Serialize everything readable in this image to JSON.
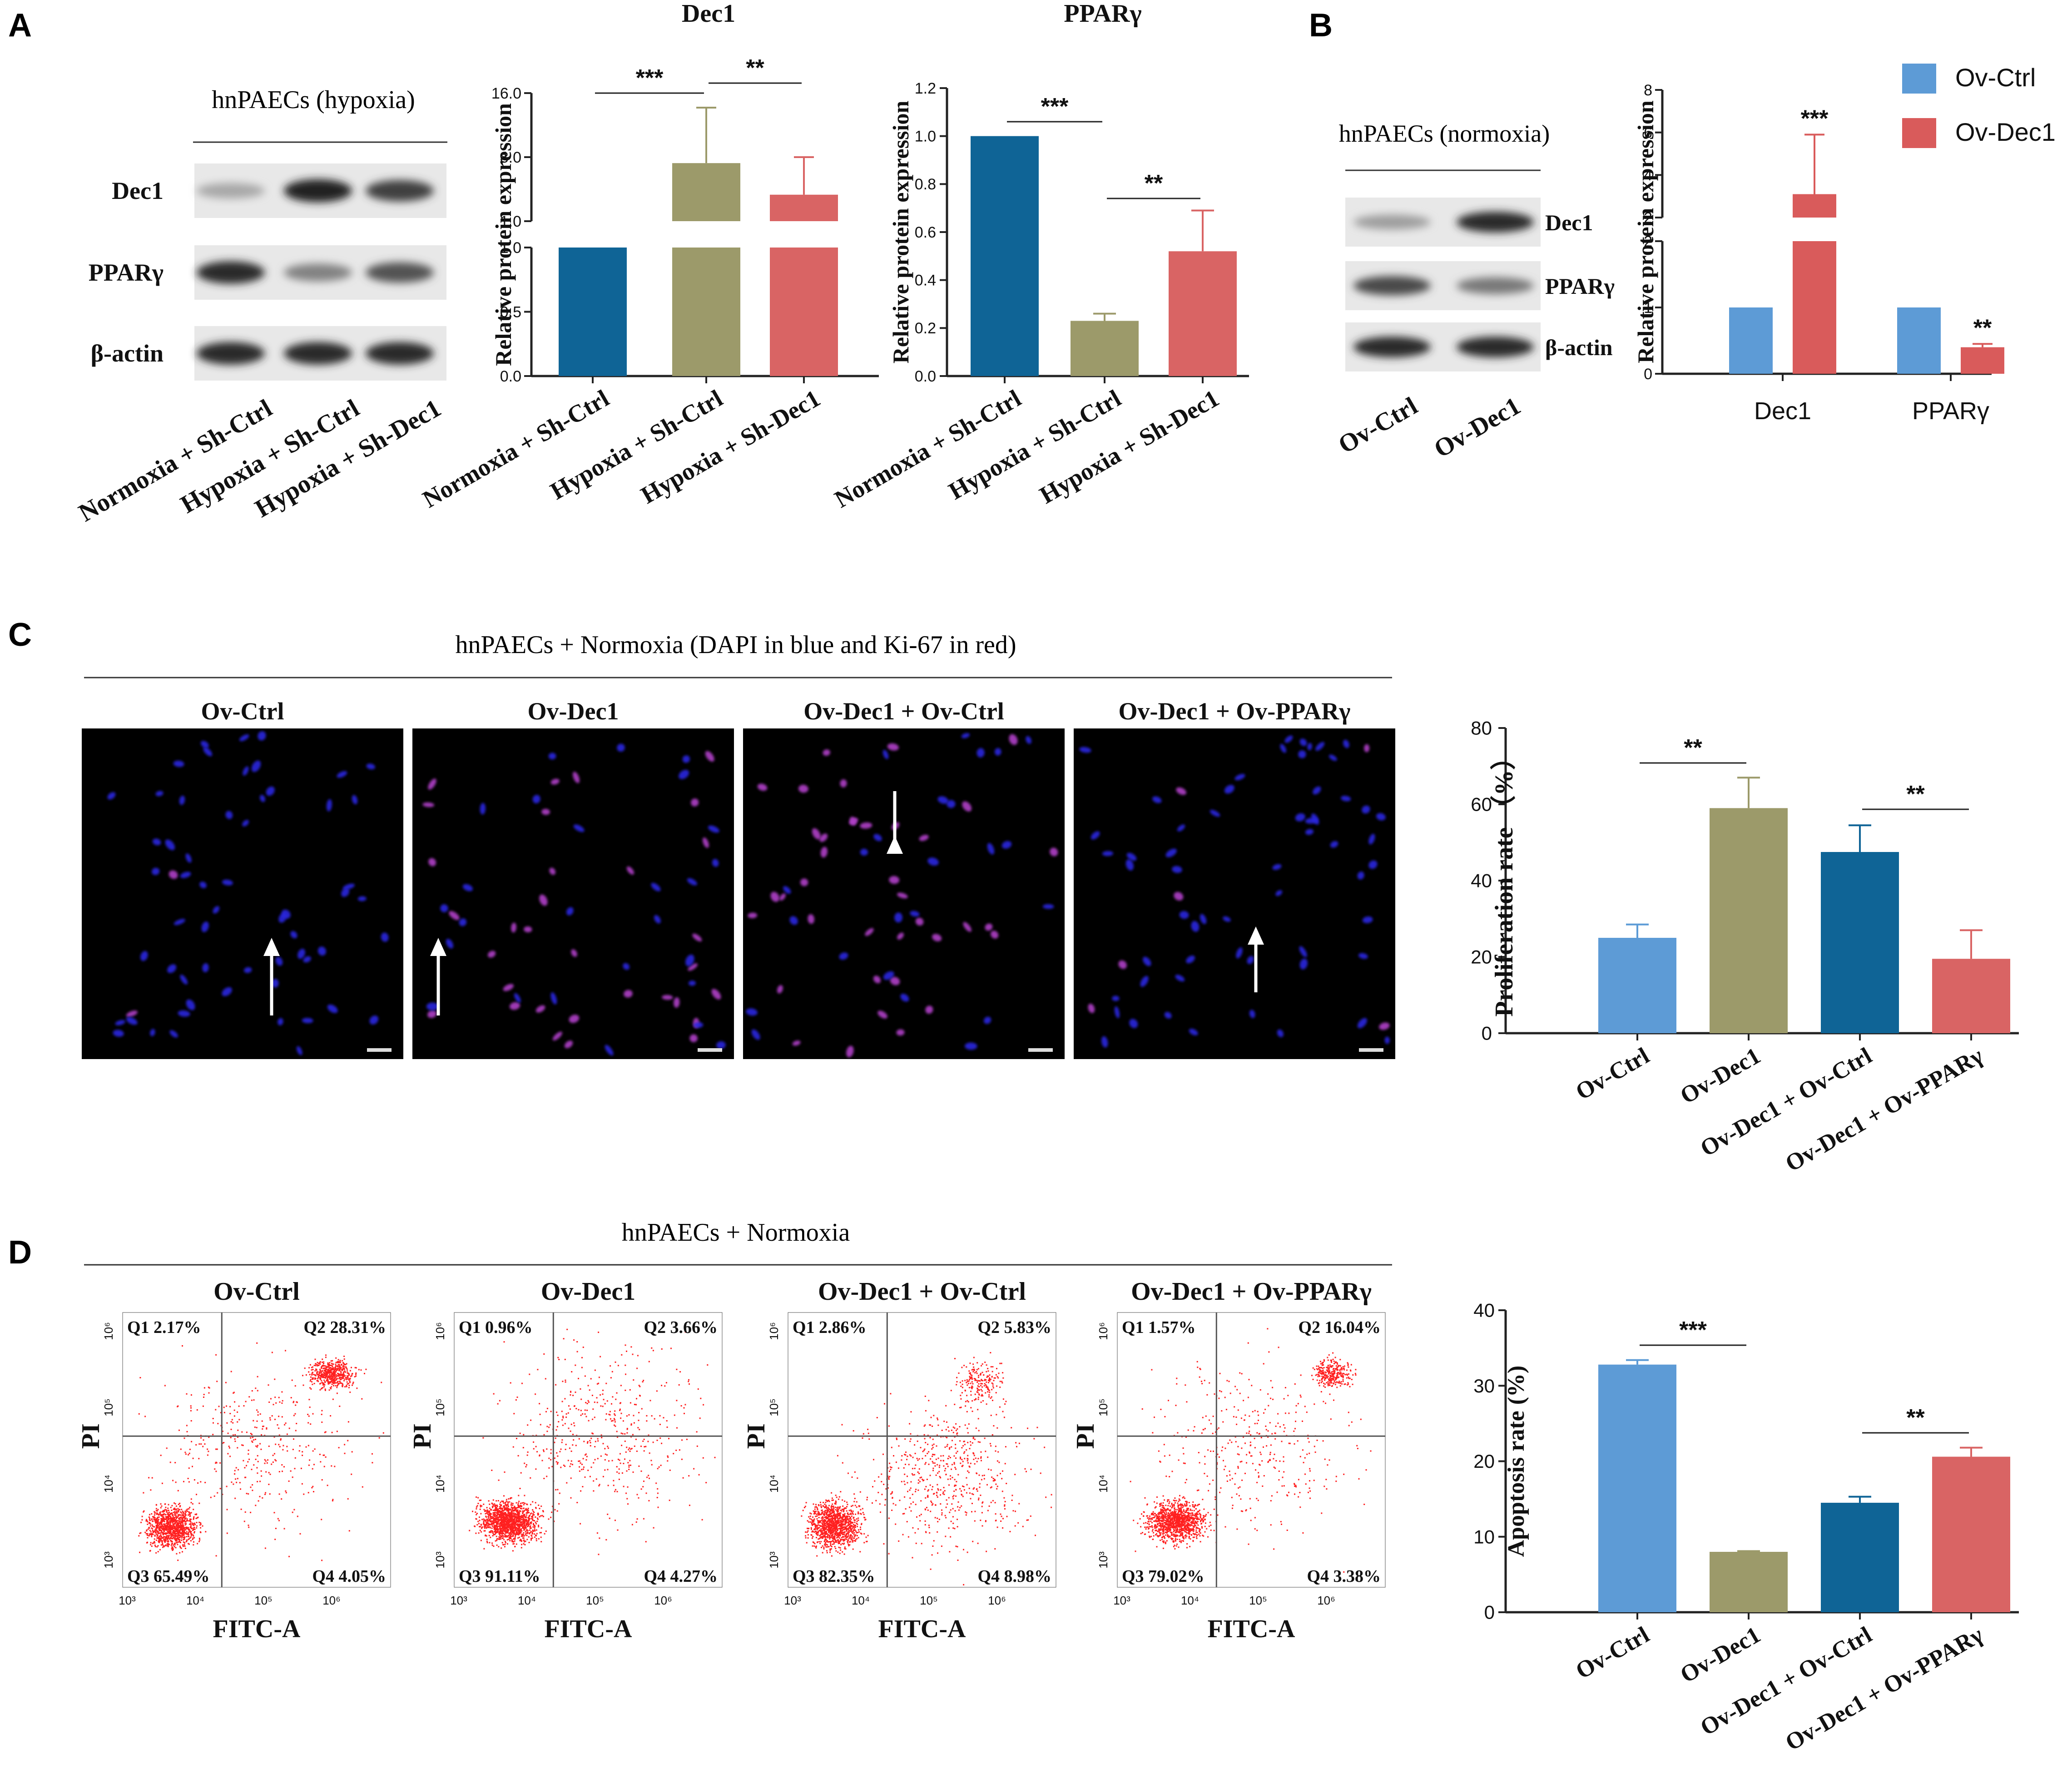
{
  "panels": {
    "A": "A",
    "B": "B",
    "C": "C",
    "D": "D"
  },
  "colors": {
    "navy": "#0f6496",
    "olive": "#9c9a6a",
    "salmon": "#d96464",
    "ltblue": "#5d9bd6",
    "red": "#d95b5b",
    "dot": "#ff2020"
  },
  "blotA": {
    "title": "hnPAECs (hypoxia)",
    "rows": [
      "Dec1",
      "PPARγ",
      "β-actin"
    ],
    "lanes": [
      "Normoxia + Sh-Ctrl",
      "Hypoxia + Sh-Ctrl",
      "Hypoxia + Sh-Dec1"
    ],
    "intensity": [
      [
        0.25,
        0.95,
        0.8
      ],
      [
        0.9,
        0.45,
        0.7
      ],
      [
        0.9,
        0.9,
        0.9
      ]
    ]
  },
  "blotB": {
    "title": "hnPAECs (normoxia)",
    "rows": [
      "Dec1",
      "PPARγ",
      "β-actin"
    ],
    "lanes": [
      "Ov-Ctrl",
      "Ov-Dec1"
    ],
    "intensity": [
      [
        0.3,
        0.9
      ],
      [
        0.75,
        0.5
      ],
      [
        0.9,
        0.9
      ]
    ]
  },
  "imagesC": {
    "title": "hnPAECs + Normoxia (DAPI in blue and Ki-67 in red)",
    "labels": [
      "Ov-Ctrl",
      "Ov-Dec1",
      "Ov-Dec1 + Ov-Ctrl",
      "Ov-Dec1 + Ov-PPARγ"
    ]
  },
  "flowD": {
    "title": "hnPAECs + Normoxia",
    "labels": [
      "Ov-Ctrl",
      "Ov-Dec1",
      "Ov-Dec1 + Ov-Ctrl",
      "Ov-Dec1 + Ov-PPARγ"
    ],
    "xlabel": "FITC-A",
    "ylabel": "PI",
    "xticks": [
      "10³",
      "10⁴",
      "10⁵",
      "10⁶"
    ],
    "yticks": [
      "10³",
      "10⁴",
      "10⁵",
      "10⁶"
    ],
    "quadrants": [
      {
        "q1": "Q1 2.17%",
        "q2": "Q2 28.31%",
        "q3": "Q3 65.49%",
        "q4": "Q4 4.05%"
      },
      {
        "q1": "Q1 0.96%",
        "q2": "Q2 3.66%",
        "q3": "Q3 91.11%",
        "q4": "Q4 4.27%"
      },
      {
        "q1": "Q1 2.86%",
        "q2": "Q2 5.83%",
        "q3": "Q3 82.35%",
        "q4": "Q4 8.98%"
      },
      {
        "q1": "Q1 1.57%",
        "q2": "Q2 16.04%",
        "q3": "Q3 79.02%",
        "q4": "Q4 3.38%"
      }
    ]
  },
  "chart_data": [
    {
      "id": "A_dec1",
      "type": "bar",
      "title": "Dec1",
      "ylabel": "Relative protein expression",
      "categories": [
        "Normoxia + Sh-Ctrl",
        "Hypoxia + Sh-Ctrl",
        "Hypoxia + Sh-Dec1"
      ],
      "values": [
        1.0,
        7.8,
        4.1
      ],
      "errors": [
        0,
        6.5,
        4.4
      ],
      "ylim_lower": [
        0,
        1.0
      ],
      "ylim_upper": [
        1.0,
        16.0
      ],
      "yticks_lower": [
        "0.0",
        "0.5",
        "1.0"
      ],
      "yticks_upper": [
        "1.0",
        "8.0",
        "16.0"
      ],
      "colors": [
        "#0f6496",
        "#9c9a6a",
        "#d96464"
      ],
      "significance": [
        {
          "from": 0,
          "to": 1,
          "label": "***"
        },
        {
          "from": 1,
          "to": 2,
          "label": "**"
        }
      ]
    },
    {
      "id": "A_ppar",
      "type": "bar",
      "title": "PPARγ",
      "ylabel": "Relative protein expression",
      "categories": [
        "Normoxia + Sh-Ctrl",
        "Hypoxia + Sh-Ctrl",
        "Hypoxia + Sh-Dec1"
      ],
      "values": [
        1.0,
        0.23,
        0.52
      ],
      "errors": [
        0,
        0.03,
        0.17
      ],
      "ylim": [
        0,
        1.2
      ],
      "yticks": [
        "0.0",
        "0.2",
        "0.4",
        "0.6",
        "0.8",
        "1.0",
        "1.2"
      ],
      "colors": [
        "#0f6496",
        "#9c9a6a",
        "#d96464"
      ],
      "significance": [
        {
          "from": 0,
          "to": 1,
          "label": "***"
        },
        {
          "from": 1,
          "to": 2,
          "label": "**"
        }
      ]
    },
    {
      "id": "B_bar",
      "type": "bar",
      "ylabel": "Relative protein expression",
      "groups": [
        "Dec1",
        "PPARγ"
      ],
      "series": [
        {
          "name": "Ov-Ctrl",
          "values": [
            1.0,
            1.0
          ],
          "errors": [
            0,
            0
          ],
          "color": "#5d9bd6"
        },
        {
          "name": "Ov-Dec1",
          "values": [
            3.1,
            0.4
          ],
          "errors": [
            2.8,
            0.05
          ],
          "color": "#d95b5b"
        }
      ],
      "ylim_lower": [
        0,
        2
      ],
      "ylim_upper": [
        2,
        8
      ],
      "yticks_lower": [
        "0",
        "1",
        "2"
      ],
      "yticks_upper": [
        "2",
        "4",
        "6",
        "8"
      ],
      "stars": [
        "***",
        "**"
      ]
    },
    {
      "id": "C_bar",
      "type": "bar",
      "ylabel": "Proliferation rate （%）",
      "categories": [
        "Ov-Ctrl",
        "Ov-Dec1",
        "Ov-Dec1 + Ov-Ctrl",
        "Ov-Dec1 + Ov-PPARγ"
      ],
      "values": [
        25,
        59,
        47.5,
        19.5
      ],
      "errors": [
        3.5,
        8,
        7,
        7.5
      ],
      "ylim": [
        0,
        80
      ],
      "yticks": [
        "0",
        "20",
        "40",
        "60",
        "80"
      ],
      "colors": [
        "#5d9bd6",
        "#9c9a6a",
        "#0f6496",
        "#d96464"
      ],
      "significance": [
        {
          "from": 0,
          "to": 1,
          "label": "**"
        },
        {
          "from": 2,
          "to": 3,
          "label": "**"
        }
      ]
    },
    {
      "id": "D_bar",
      "type": "bar",
      "ylabel": "Apoptosis rate (%)",
      "categories": [
        "Ov-Ctrl",
        "Ov-Dec1",
        "Ov-Dec1 + Ov-Ctrl",
        "Ov-Dec1 + Ov-PPARγ"
      ],
      "values": [
        32.8,
        8.0,
        14.5,
        20.6
      ],
      "errors": [
        0.6,
        0.1,
        0.8,
        1.2
      ],
      "ylim": [
        0,
        40
      ],
      "yticks": [
        "0",
        "10",
        "20",
        "30",
        "40"
      ],
      "colors": [
        "#5d9bd6",
        "#9c9a6a",
        "#0f6496",
        "#d96464"
      ],
      "significance": [
        {
          "from": 0,
          "to": 1,
          "label": "***"
        },
        {
          "from": 2,
          "to": 3,
          "label": "**"
        }
      ]
    }
  ]
}
